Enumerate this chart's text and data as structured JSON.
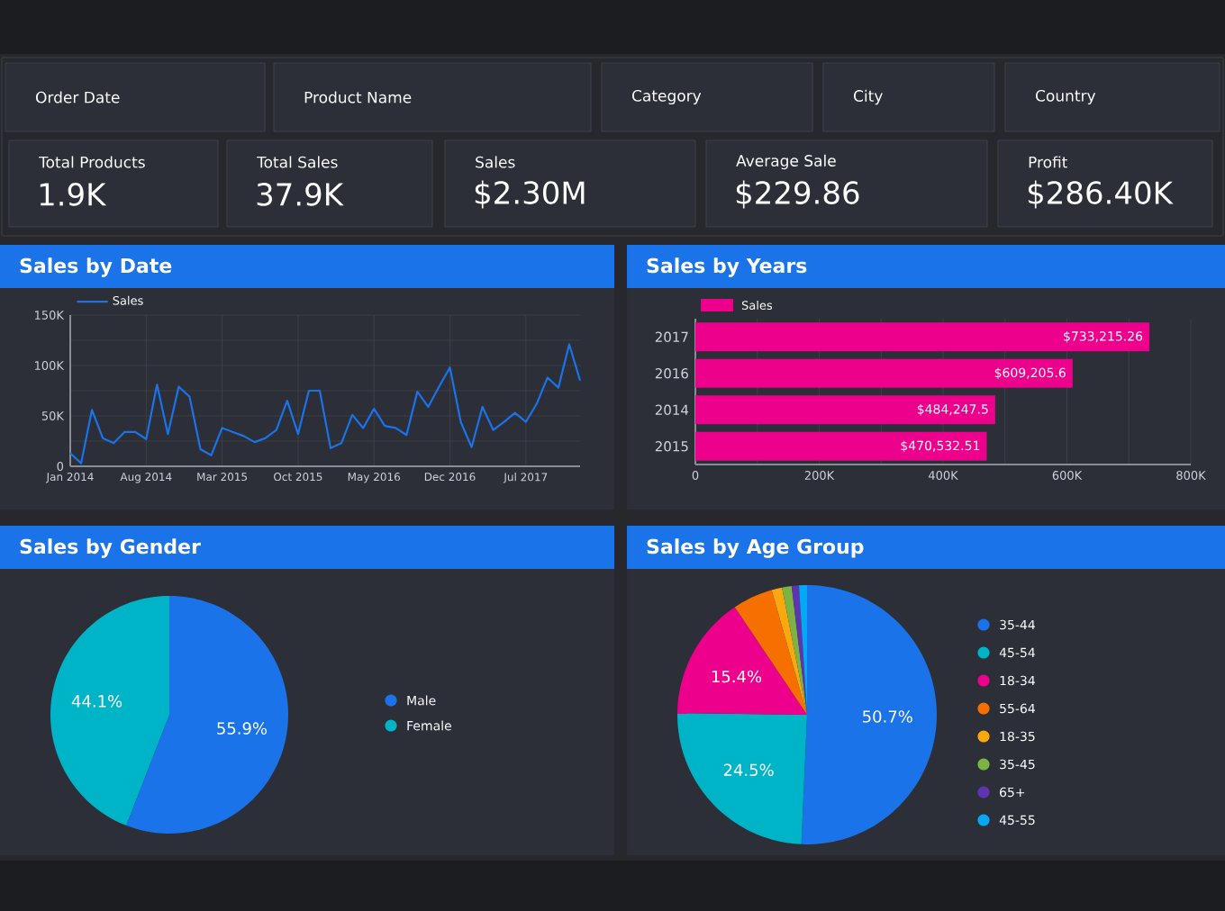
{
  "chart_data": [
    {
      "type": "other",
      "annotations": [
        "Order Date",
        "Product Name",
        "Category",
        "City",
        "Country"
      ]
    },
    {
      "type": "other",
      "annotations": [
        "Total Products",
        "1.9K",
        "Total Sales",
        "37.9K",
        "Sales",
        "$2.30M",
        "Average Sale",
        "$229.86",
        "Profit",
        "$286.40K"
      ]
    },
    {
      "type": "line",
      "title": "Sales by Date",
      "legend": "top left",
      "grid": true,
      "x": [
        "2014-01",
        "2014-02",
        "2014-03",
        "2014-04",
        "2014-05",
        "2014-06",
        "2014-07",
        "2014-08",
        "2014-09",
        "2014-10",
        "2014-11",
        "2014-12",
        "2015-01",
        "2015-02",
        "2015-03",
        "2015-04",
        "2015-05",
        "2015-06",
        "2015-07",
        "2015-08",
        "2015-09",
        "2015-10",
        "2015-11",
        "2015-12",
        "2016-01",
        "2016-02",
        "2016-03",
        "2016-04",
        "2016-05",
        "2016-06",
        "2016-07",
        "2016-08",
        "2016-09",
        "2016-10",
        "2016-11",
        "2016-12",
        "2017-01",
        "2017-02",
        "2017-03",
        "2017-04",
        "2017-05",
        "2017-06",
        "2017-07",
        "2017-08",
        "2017-09",
        "2017-10",
        "2017-11",
        "2017-12"
      ],
      "series": [
        {
          "name": "Sales",
          "color": "#1a73e8",
          "values": [
            13000,
            3000,
            56000,
            28000,
            23000,
            34000,
            34000,
            27000,
            81000,
            32000,
            79000,
            69000,
            17000,
            11000,
            38000,
            34000,
            30000,
            24000,
            28000,
            36000,
            65000,
            32000,
            75000,
            75000,
            18000,
            23000,
            51000,
            38000,
            57000,
            40000,
            38000,
            31000,
            74000,
            59000,
            79000,
            98000,
            44000,
            19000,
            59000,
            36000,
            44000,
            53000,
            44000,
            62000,
            88000,
            78000,
            121000,
            85000
          ]
        }
      ],
      "xlim": [
        "2014-01",
        "2017-12"
      ],
      "xticks": [
        {
          "value": "2014-01",
          "label": "Jan 2014"
        },
        {
          "value": "2014-08",
          "label": "Aug 2014"
        },
        {
          "value": "2015-03",
          "label": "Mar 2015"
        },
        {
          "value": "2015-10",
          "label": "Oct 2015"
        },
        {
          "value": "2016-05",
          "label": "May 2016"
        },
        {
          "value": "2016-12",
          "label": "Dec 2016"
        },
        {
          "value": "2017-07",
          "label": "Jul 2017"
        }
      ],
      "ylim": [
        0,
        150000
      ],
      "yticks": [
        0,
        {
          "value": 25000,
          "label": null
        },
        {
          "value": 50000,
          "label": "50K"
        },
        {
          "value": 75000,
          "label": null
        },
        {
          "value": 100000,
          "label": "100K"
        },
        {
          "value": 125000,
          "label": null
        },
        {
          "value": 150000,
          "label": "150K"
        }
      ]
    },
    {
      "type": "bar",
      "title": "Sales by Years",
      "orientation": "horizontal",
      "legend": "top left",
      "grid": "x",
      "categories": [
        "2017",
        "2016",
        "2014",
        "2015"
      ],
      "series": [
        {
          "name": "Sales",
          "color": "#ec008c",
          "values": [
            733215.26,
            609205.6,
            484247.5,
            470532.51
          ],
          "value_labels": [
            "$733,215.26",
            "$609,205.6",
            "$484,247.5",
            "$470,532.51"
          ]
        }
      ],
      "xlim": [
        0,
        800000
      ],
      "xticks": [
        0,
        {
          "value": 100000,
          "label": null
        },
        {
          "value": 200000,
          "label": "200K"
        },
        {
          "value": 300000,
          "label": null
        },
        {
          "value": 400000,
          "label": "400K"
        },
        {
          "value": 500000,
          "label": null
        },
        {
          "value": 600000,
          "label": "600K"
        },
        {
          "value": 700000,
          "label": null
        },
        {
          "value": 800000,
          "label": "800K"
        }
      ]
    },
    {
      "type": "pie",
      "title": "Sales by Gender",
      "legend": "right",
      "categories": [
        "Male",
        "Female"
      ],
      "values": [
        55.9,
        44.1
      ],
      "colors": [
        "#1a73e8",
        "#00b4c8"
      ],
      "value_labels": [
        "55.9%",
        "44.1%"
      ]
    },
    {
      "type": "pie",
      "title": "Sales by Age Group",
      "legend": "right",
      "categories": [
        "35-44",
        "45-54",
        "18-34",
        "55-64",
        "18-35",
        "35-45",
        "65+",
        "45-55"
      ],
      "values": [
        50.7,
        24.5,
        15.4,
        5.0,
        1.3,
        1.2,
        0.9,
        1.0
      ],
      "colors": [
        "#1a73e8",
        "#00b4c8",
        "#ec008c",
        "#f57000",
        "#fba80f",
        "#7cb342",
        "#5e35b1",
        "#03a9f4"
      ],
      "value_labels": [
        "50.7%",
        "24.5%",
        "15.4%",
        null,
        null,
        null,
        null,
        null
      ]
    }
  ]
}
